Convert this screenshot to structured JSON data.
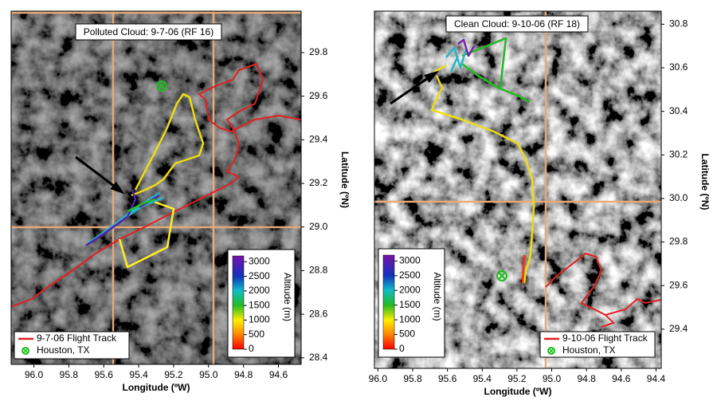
{
  "chart_data": [
    {
      "type": "map",
      "title": "Polluted Cloud: 9-7-06 (RF 16)",
      "x_label": "Longitude (ºW)",
      "y_label": "Latitude (ºN)",
      "xlim": [
        96.13,
        94.47
      ],
      "ylim": [
        28.37,
        29.99
      ],
      "xticks": [
        {
          "value": 96,
          "label": "96.0"
        },
        95.8,
        95.6,
        95.4,
        95.2,
        {
          "value": 95,
          "label": "95.0"
        },
        94.8,
        94.6
      ],
      "yticks": [
        28.4,
        28.6,
        28.8,
        {
          "value": 29,
          "label": "29.0"
        },
        29.2,
        29.4,
        29.6,
        29.8
      ],
      "colorbar": {
        "label": "Altitude (m)",
        "lim": [
          0,
          3200
        ],
        "ticks": [
          0,
          500,
          1000,
          1500,
          2000,
          2500,
          3000
        ]
      },
      "legend": [
        {
          "name": "9-7-06 Flight Track",
          "color": "#e02020"
        },
        {
          "name": "Houston, TX",
          "color": "#22bb22"
        }
      ]
    },
    {
      "type": "map",
      "title": "Clean Cloud: 9-10-06 (RF 18)",
      "x_label": "Longitude (ºW)",
      "y_label": "Latitude (ºN)",
      "xlim": [
        96.02,
        94.37
      ],
      "ylim": [
        29.22,
        30.86
      ],
      "xticks": [
        {
          "value": 96,
          "label": "96.0"
        },
        95.8,
        95.6,
        95.4,
        95.2,
        {
          "value": 95,
          "label": "95.0"
        },
        94.8,
        94.6,
        94.4
      ],
      "yticks": [
        29.4,
        29.6,
        29.8,
        {
          "value": 30,
          "label": "30.0"
        },
        30.2,
        30.4,
        30.6,
        30.8
      ],
      "colorbar": {
        "label": "Altitude (m)",
        "lim": [
          0,
          3200
        ],
        "ticks": [
          0,
          500,
          1000,
          1500,
          2000,
          2500,
          3000
        ]
      },
      "legend": [
        {
          "name": "9-10-06 Flight Track",
          "color": "#e02020"
        },
        {
          "name": "Houston, TX",
          "color": "#22bb22"
        }
      ]
    }
  ]
}
